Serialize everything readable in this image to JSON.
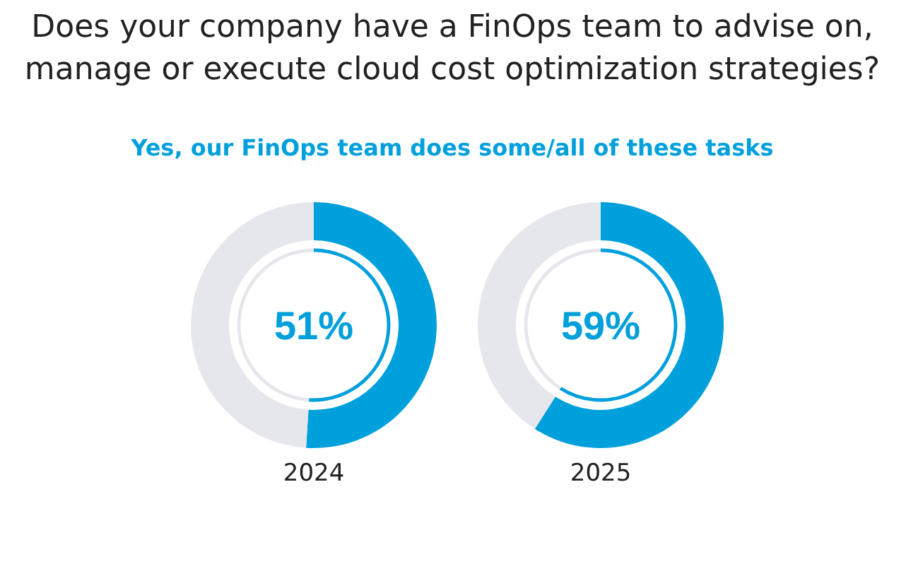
{
  "chart_data": [
    {
      "type": "donut",
      "title": "Does your company have a FinOps team to advise on, manage or execute cloud cost optimization strategies?",
      "subtitle": "Yes, our FinOps team does some/all of these tasks",
      "xlabel": "2024",
      "categories": [
        null,
        null
      ],
      "values": [
        51,
        49
      ],
      "colors": [
        "#00a0dc",
        "#e6e7ec"
      ],
      "value_labels": [
        "51%",
        null
      ]
    },
    {
      "type": "donut",
      "xlabel": "2025",
      "categories": [
        null,
        null
      ],
      "values": [
        59,
        41
      ],
      "colors": [
        "#00a0dc",
        "#e6e7ec"
      ],
      "value_labels": [
        "59%",
        null
      ]
    }
  ]
}
